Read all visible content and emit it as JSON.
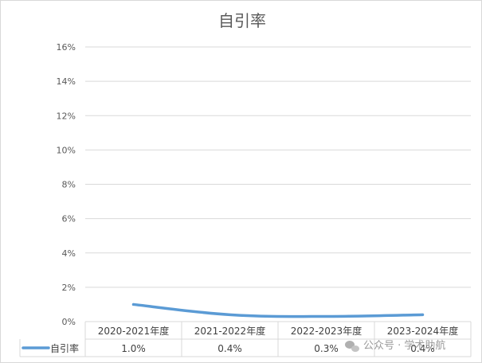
{
  "chart_data": {
    "type": "line",
    "title": "自引率",
    "categories": [
      "2020-2021年度",
      "2021-2022年度",
      "2022-2023年度",
      "2023-2024年度"
    ],
    "series": [
      {
        "name": "自引率",
        "values": [
          1.0,
          0.4,
          0.3,
          0.4
        ],
        "labels": [
          "1.0%",
          "0.4%",
          "0.3%",
          "0.4%"
        ],
        "color": "#5b9bd5"
      }
    ],
    "y_ticks": [
      "0%",
      "2%",
      "4%",
      "6%",
      "8%",
      "10%",
      "12%",
      "14%",
      "16%"
    ],
    "ylim": [
      0,
      16
    ],
    "grid": true,
    "data_table": true
  },
  "watermark": {
    "icon": "wechat-icon",
    "text": "公众号 · 学术助航"
  }
}
